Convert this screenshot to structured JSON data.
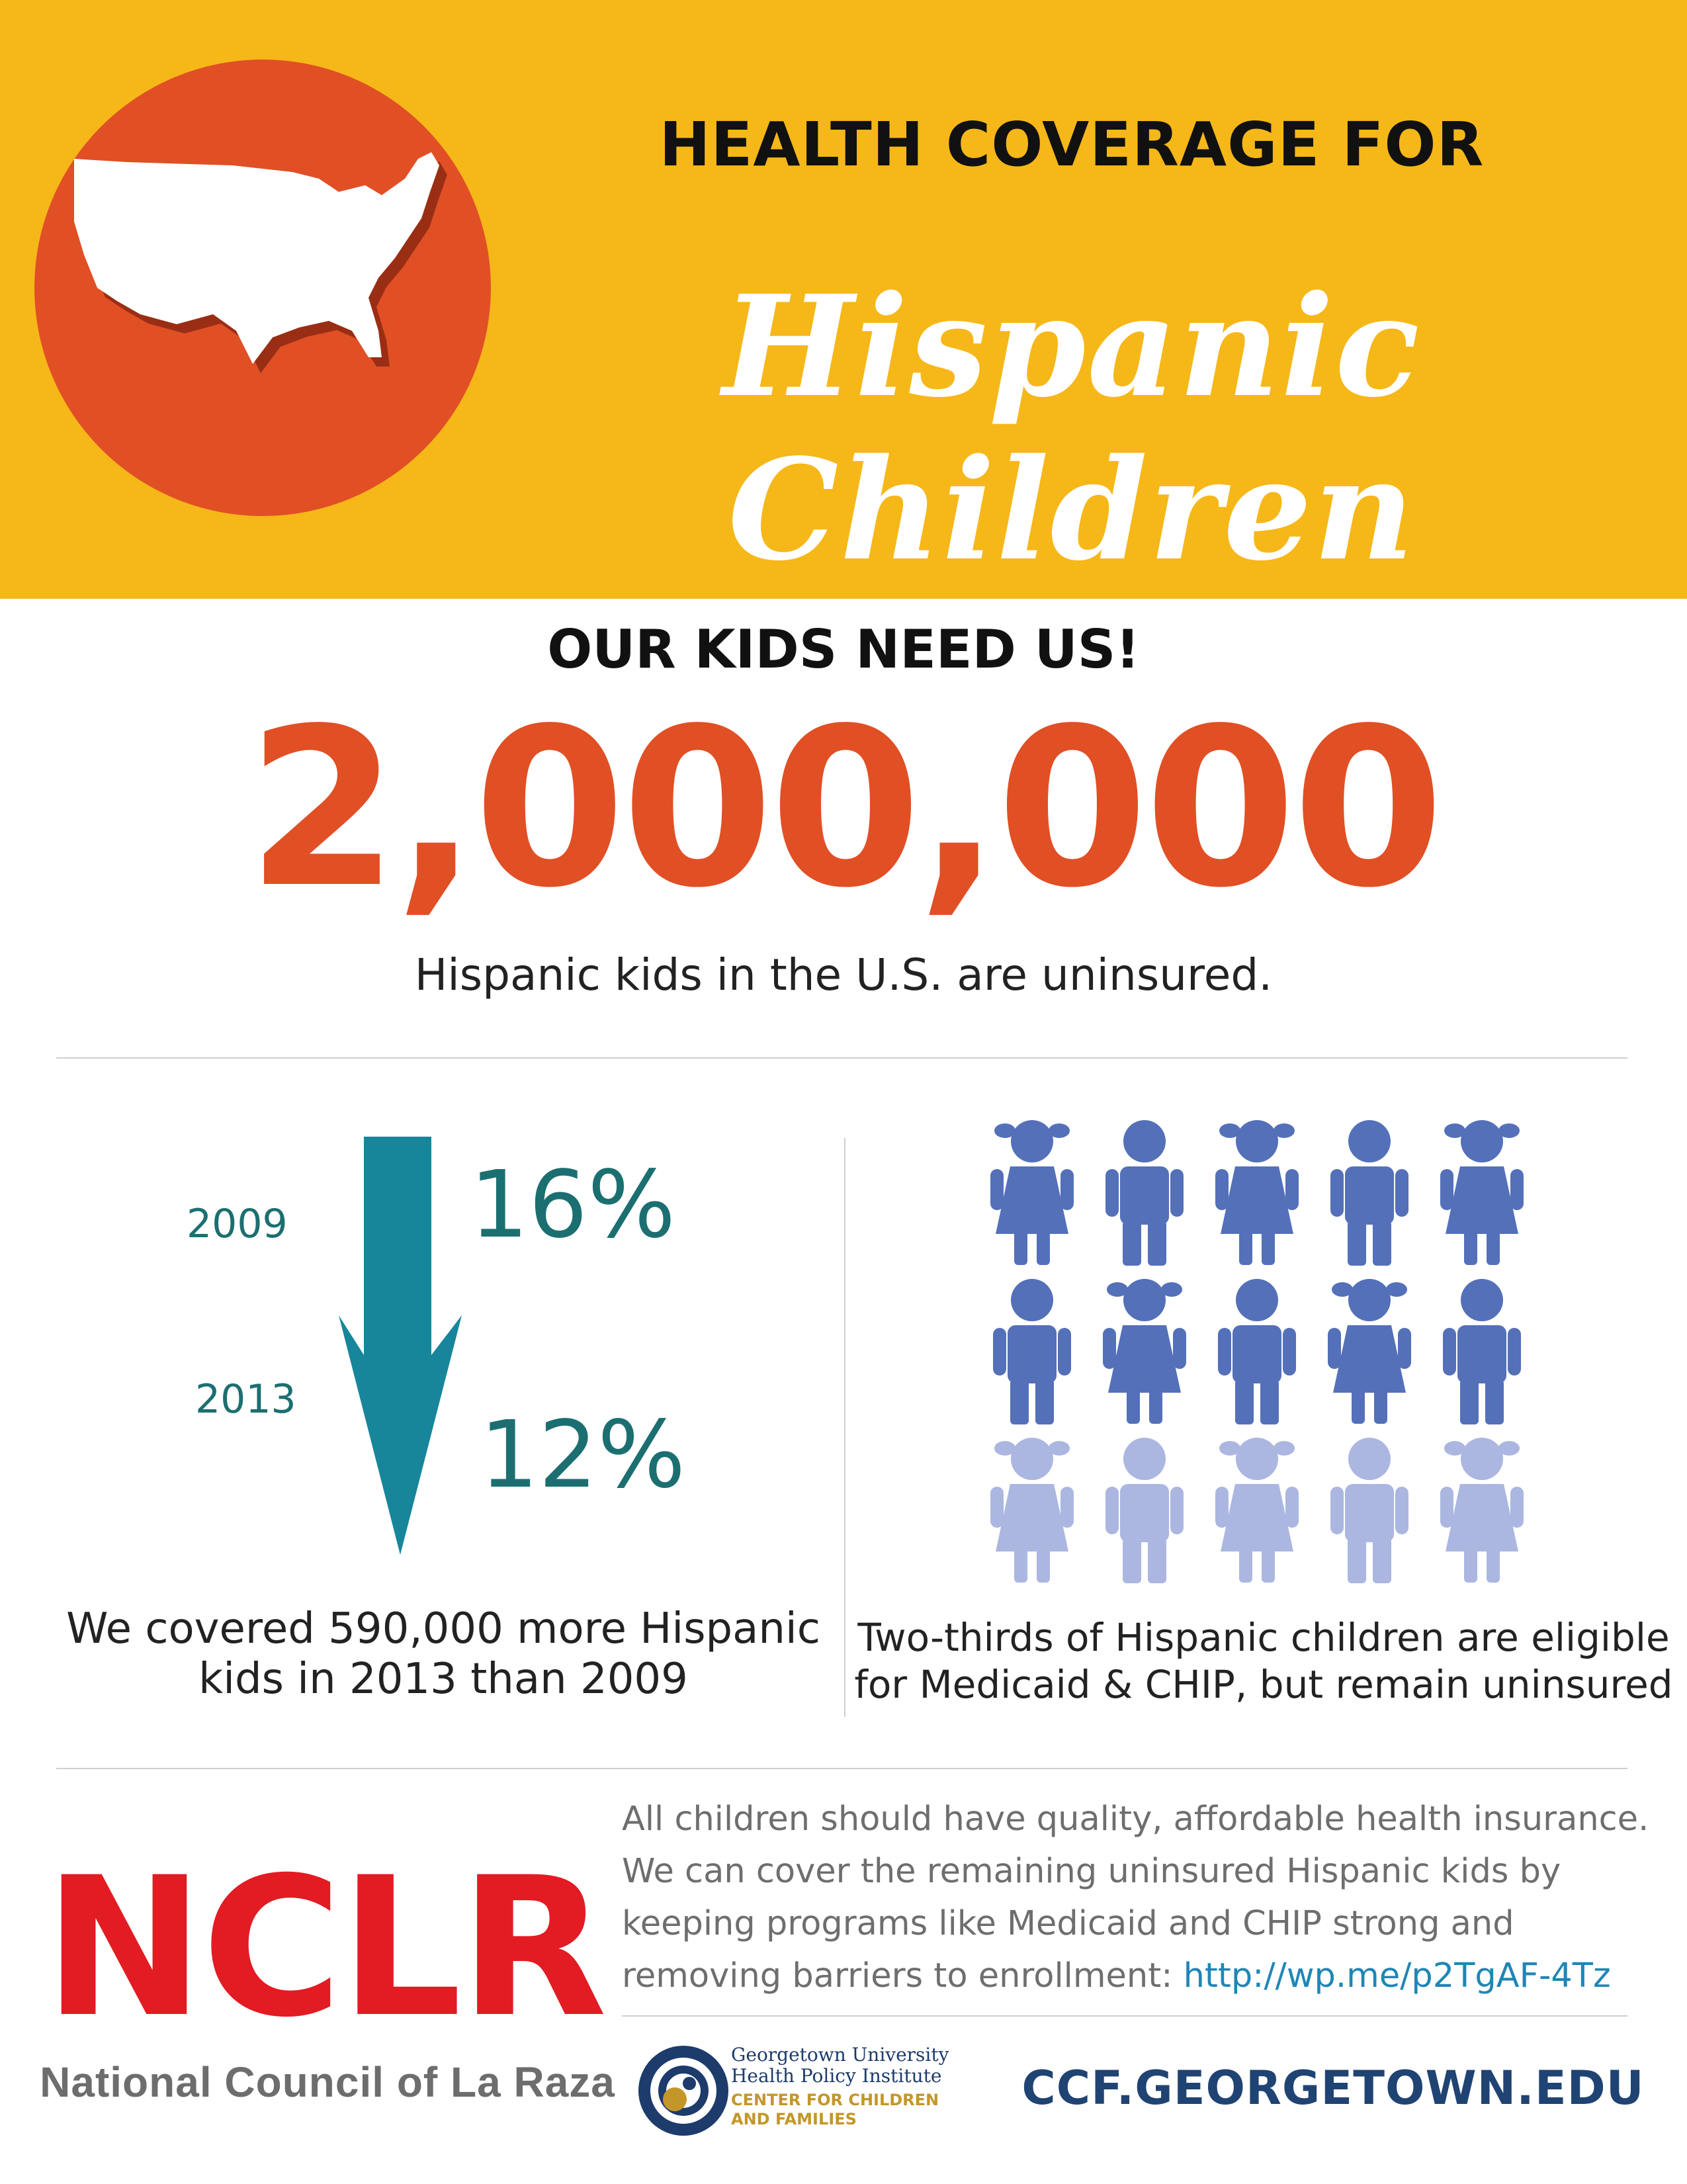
{
  "header": {
    "line1": "HEALTH COVERAGE FOR",
    "line2": "Hispanic Children",
    "icon": "us-map-icon"
  },
  "main": {
    "tagline": "OUR KIDS NEED US!",
    "big_number": "2,000,000",
    "caption": "Hispanic kids in the U.S. are uninsured."
  },
  "left_panel": {
    "year_start": "2009",
    "pct_start": "16%",
    "year_end": "2013",
    "pct_end": "12%",
    "caption_line1": "We covered 590,000 more Hispanic",
    "caption_line2": "kids in 2013 than 2009",
    "arrow_icon": "down-arrow-icon",
    "arrow_color": "#17869a"
  },
  "right_panel": {
    "eligible_fraction": "2/3",
    "icon_rows": [
      [
        "girl",
        "boy",
        "girl",
        "boy",
        "girl"
      ],
      [
        "boy",
        "girl",
        "boy",
        "girl",
        "boy"
      ],
      [
        "girl",
        "boy",
        "girl",
        "boy",
        "girl"
      ]
    ],
    "highlight_color": "#5470b9",
    "muted_color": "#abb7e0",
    "caption_line1": "Two-thirds of Hispanic children are eligible",
    "caption_line2": "for Medicaid & CHIP, but remain uninsured"
  },
  "footer": {
    "nclr_logo": "NCLR",
    "nclr_tagline": "National Council of La Raza",
    "body_text": "All children should have quality, affordable health insurance. We can cover the remaining uninsured Hispanic kids by keeping programs like Medicaid and CHIP strong and removing barriers to enrollment: ",
    "link_text": "http://wp.me/p2TgAF-4Tz",
    "gu_line1": "Georgetown University",
    "gu_line2": "Health Policy Institute",
    "gu_line3": "CENTER FOR CHILDREN",
    "gu_line4": "AND FAMILIES",
    "url": "CCF.GEORGETOWN.EDU"
  },
  "colors": {
    "header_bg": "#f6b719",
    "accent_orange": "#e14f25",
    "teal": "#1c6f70",
    "nclr_red": "#e31b23",
    "navy": "#1f4373"
  }
}
